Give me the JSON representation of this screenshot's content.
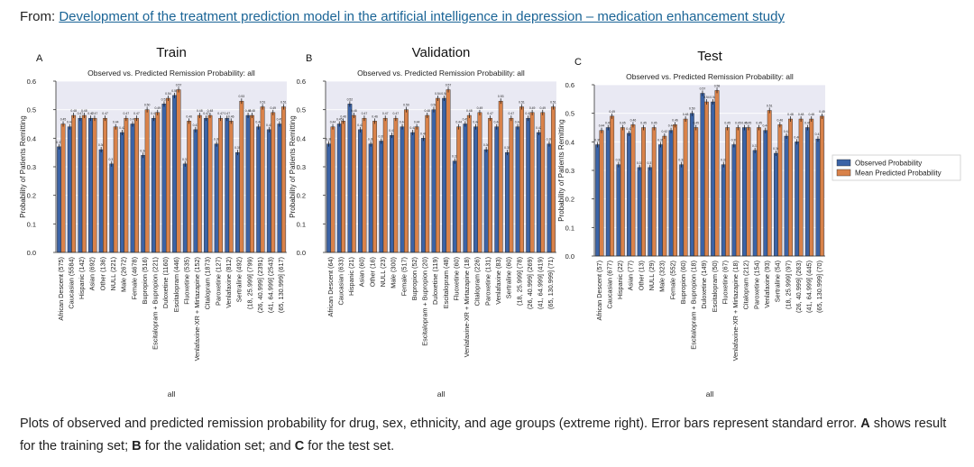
{
  "source": {
    "prefix": "From:",
    "link_text": "Development of the treatment prediction model in the artificial intelligence in depression – medication enhancement study"
  },
  "caption": {
    "part1": "Plots of observed and predicted remission probability for drug, sex, ethnicity, and age groups (extreme right). Error bars represent standard error.",
    "bold_a": "A",
    "part2": "shows result for the training set;",
    "bold_b": "B",
    "part3": "for the validation set; and",
    "bold_c": "C",
    "part4": "for the test set."
  },
  "legend": {
    "observed": "Observed Probability",
    "predicted": "Mean Predicted Probability"
  },
  "colors": {
    "observed": "#3b63a6",
    "predicted": "#d9824a",
    "plot_bg": "#e9e9f3"
  },
  "chart_data": [
    {
      "type": "bar",
      "panel": "A",
      "heading": "Train",
      "title": "Observed vs. Predicted Remission Probability: all",
      "xlabel": "all",
      "ylabel": "Probability of Patients Remitting",
      "ylim": [
        0,
        0.6
      ],
      "yticks": [
        "0.0",
        "0.1",
        "0.2",
        "0.3",
        "0.4",
        "0.5",
        "0.6"
      ],
      "categories": [
        "African Descent (575)",
        "Caucasian (5584)",
        "Hispanic (142)",
        "Asian (692)",
        "Other (136)",
        "NULL (221)",
        "Male (2672)",
        "Female (4678)",
        "Bupropion (516)",
        "Escitalopram + Bupropion (221)",
        "Duloxetine (1160)",
        "Escitalopram (446)",
        "Fluoxetine (535)",
        "Venlafaxine-XR + Mirtazapine (152)",
        "Citalopram (1873)",
        "Paroxetine (127)",
        "Venlafaxine (812)",
        "Sertraline (492)",
        "(18, 25.999] (799)",
        "(26, 40.999] (2391)",
        "(41, 64.999] (2543)",
        "(65, 130.999] (617)"
      ],
      "series": [
        {
          "name": "Observed Probability",
          "values": [
            0.37,
            0.44,
            0.47,
            0.47,
            0.36,
            0.31,
            0.42,
            0.45,
            0.34,
            0.47,
            0.52,
            0.55,
            0.31,
            0.43,
            0.47,
            0.38,
            0.47,
            0.35,
            0.48,
            0.44,
            0.43,
            0.45
          ]
        },
        {
          "name": "Mean Predicted Probability",
          "values": [
            0.45,
            0.48,
            0.48,
            0.47,
            0.47,
            0.44,
            0.47,
            0.47,
            0.5,
            0.49,
            0.54,
            0.57,
            0.46,
            0.48,
            0.48,
            0.47,
            0.46,
            0.53,
            0.48,
            0.51,
            0.49,
            0.51
          ]
        }
      ]
    },
    {
      "type": "bar",
      "panel": "B",
      "heading": "Validation",
      "title": "Observed vs. Predicted Remission Probability: all",
      "xlabel": "all",
      "ylabel": "Probability of Patients Remitting",
      "ylim": [
        0,
        0.6
      ],
      "yticks": [
        "0.0",
        "0.1",
        "0.2",
        "0.3",
        "0.4",
        "0.5",
        "0.6"
      ],
      "categories": [
        "African Descent (64)",
        "Caucasian (633)",
        "Hispanic (21)",
        "Asian (60)",
        "Other (16)",
        "NULL (23)",
        "Male (300)",
        "Female (517)",
        "Bupropion (52)",
        "Escitalopram + Bupropion (20)",
        "Duloxetine (119)",
        "Escitalopram (48)",
        "Fluoxetine (60)",
        "Venlafaxine-XR + Mirtazapine (18)",
        "Citalopram (226)",
        "Paroxetine (131)",
        "Venlafaxine (83)",
        "Sertraline (60)",
        "(18, 25.999] (78)",
        "(26, 40.999] (269)",
        "(41, 64.999] (419)",
        "(65, 130.999] (71)"
      ],
      "series": [
        {
          "name": "Observed Probability",
          "values": [
            0.38,
            0.45,
            0.52,
            0.43,
            0.38,
            0.39,
            0.41,
            0.44,
            0.42,
            0.4,
            0.5,
            0.54,
            0.32,
            0.45,
            0.44,
            0.36,
            0.44,
            0.35,
            0.44,
            0.47,
            0.42,
            0.38
          ]
        },
        {
          "name": "Mean Predicted Probability",
          "values": [
            0.44,
            0.46,
            0.48,
            0.47,
            0.46,
            0.47,
            0.47,
            0.5,
            0.44,
            0.48,
            0.54,
            0.57,
            0.44,
            0.48,
            0.49,
            0.47,
            0.53,
            0.47,
            0.51,
            0.49,
            0.49,
            0.51
          ]
        }
      ]
    },
    {
      "type": "bar",
      "panel": "C",
      "heading": "Test",
      "title": "Observed vs. Predicted Remission Probability: all",
      "xlabel": "all",
      "ylabel": "Probability of Patients Remitting",
      "ylim": [
        0,
        0.6
      ],
      "yticks": [
        "0.0",
        "0.1",
        "0.2",
        "0.3",
        "0.4",
        "0.5",
        "0.6"
      ],
      "categories": [
        "African Descent (57)",
        "Caucasian (677)",
        "Hispanic (22)",
        "Asian (77)",
        "Other (13)",
        "NULL (29)",
        "Male (323)",
        "Female (552)",
        "Bupropion (60)",
        "Escitalopram + Bupropion (18)",
        "Duloxetine (149)",
        "Escitalopram (50)",
        "Fluoxetine (67)",
        "Venlafaxine-XR + Mirtazapine (18)",
        "Citalopram (212)",
        "Paroxetine (154)",
        "Venlafaxine (93)",
        "Sertraline (54)",
        "(18, 25.999] (97)",
        "(26, 40.999] (263)",
        "(41, 64.999] (445)",
        "(65, 130.999] (70)"
      ],
      "series": [
        {
          "name": "Observed Probability",
          "values": [
            0.39,
            0.45,
            0.32,
            0.43,
            0.31,
            0.31,
            0.39,
            0.44,
            0.32,
            0.5,
            0.57,
            0.54,
            0.32,
            0.39,
            0.45,
            0.37,
            0.44,
            0.36,
            0.42,
            0.4,
            0.45,
            0.41
          ]
        },
        {
          "name": "Mean Predicted Probability",
          "values": [
            0.44,
            0.49,
            0.45,
            0.46,
            0.45,
            0.45,
            0.42,
            0.46,
            0.48,
            0.45,
            0.54,
            0.58,
            0.45,
            0.45,
            0.45,
            0.45,
            0.51,
            0.46,
            0.48,
            0.48,
            0.48,
            0.49
          ]
        }
      ]
    }
  ]
}
